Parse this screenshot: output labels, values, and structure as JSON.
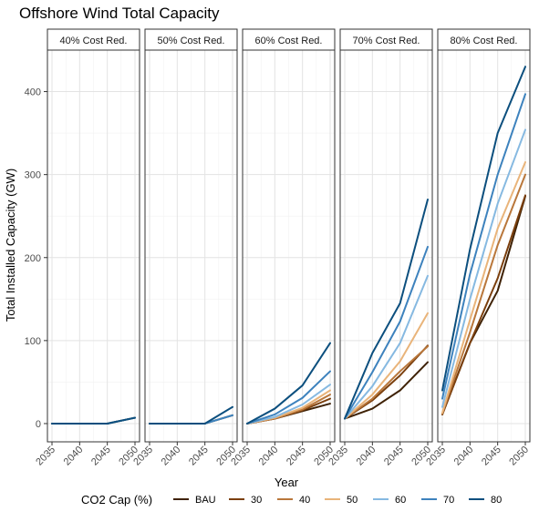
{
  "chart_data": {
    "type": "line",
    "title": "Offshore Wind Total Capacity",
    "xlabel": "Year",
    "ylabel": "Total Installed Capacity (GW)",
    "x": [
      2035,
      2040,
      2045,
      2050
    ],
    "x_ticks": [
      "2035",
      "2040",
      "2045",
      "2050"
    ],
    "ylim": [
      -22,
      450
    ],
    "y_ticks": [
      0,
      100,
      200,
      300,
      400
    ],
    "grid": true,
    "legend": {
      "title": "CO2 Cap (%)",
      "position": "bottom",
      "entries": [
        {
          "name": "BAU",
          "color": "#3f2206"
        },
        {
          "name": "30",
          "color": "#7b3f0d"
        },
        {
          "name": "40",
          "color": "#b9773b"
        },
        {
          "name": "50",
          "color": "#e9b47a"
        },
        {
          "name": "60",
          "color": "#86b9e1"
        },
        {
          "name": "70",
          "color": "#3d82bd"
        },
        {
          "name": "80",
          "color": "#0c4f7e"
        }
      ]
    },
    "panels": [
      {
        "label": "40% Cost Red.",
        "series": [
          {
            "name": "BAU",
            "values": [
              0,
              0,
              0,
              7
            ]
          },
          {
            "name": "30",
            "values": [
              0,
              0,
              0,
              7
            ]
          },
          {
            "name": "40",
            "values": [
              0,
              0,
              0,
              7
            ]
          },
          {
            "name": "50",
            "values": [
              0,
              0,
              0,
              7
            ]
          },
          {
            "name": "60",
            "values": [
              0,
              0,
              0,
              7
            ]
          },
          {
            "name": "70",
            "values": [
              0,
              0,
              0,
              7
            ]
          },
          {
            "name": "80",
            "values": [
              0,
              0,
              0,
              7
            ]
          }
        ]
      },
      {
        "label": "50% Cost Red.",
        "series": [
          {
            "name": "BAU",
            "values": [
              0,
              0,
              0,
              10
            ]
          },
          {
            "name": "30",
            "values": [
              0,
              0,
              0,
              10
            ]
          },
          {
            "name": "40",
            "values": [
              0,
              0,
              0,
              10
            ]
          },
          {
            "name": "50",
            "values": [
              0,
              0,
              0,
              10
            ]
          },
          {
            "name": "60",
            "values": [
              0,
              0,
              0,
              10
            ]
          },
          {
            "name": "70",
            "values": [
              0,
              0,
              0,
              10
            ]
          },
          {
            "name": "80",
            "values": [
              0,
              0,
              0,
              20
            ]
          }
        ]
      },
      {
        "label": "60% Cost Red.",
        "series": [
          {
            "name": "BAU",
            "values": [
              0,
              6,
              15,
              24
            ]
          },
          {
            "name": "30",
            "values": [
              0,
              6,
              16,
              30
            ]
          },
          {
            "name": "40",
            "values": [
              0,
              6,
              17,
              35
            ]
          },
          {
            "name": "50",
            "values": [
              0,
              7,
              19,
              40
            ]
          },
          {
            "name": "60",
            "values": [
              0,
              8,
              23,
              47
            ]
          },
          {
            "name": "70",
            "values": [
              0,
              11,
              31,
              63
            ]
          },
          {
            "name": "80",
            "values": [
              0,
              18,
              46,
              97
            ]
          }
        ]
      },
      {
        "label": "70% Cost Red.",
        "series": [
          {
            "name": "BAU",
            "values": [
              6,
              18,
              40,
              74
            ]
          },
          {
            "name": "30",
            "values": [
              6,
              28,
              58,
              94
            ]
          },
          {
            "name": "40",
            "values": [
              6,
              30,
              63,
              93
            ]
          },
          {
            "name": "50",
            "values": [
              6,
              35,
              75,
              133
            ]
          },
          {
            "name": "60",
            "values": [
              6,
              45,
              97,
              178
            ]
          },
          {
            "name": "70",
            "values": [
              6,
              62,
              123,
              213
            ]
          },
          {
            "name": "80",
            "values": [
              6,
              85,
              145,
              270
            ]
          }
        ]
      },
      {
        "label": "80% Cost Red.",
        "series": [
          {
            "name": "BAU",
            "values": [
              11,
              97,
              160,
              274
            ]
          },
          {
            "name": "30",
            "values": [
              11,
              97,
              175,
              275
            ]
          },
          {
            "name": "40",
            "values": [
              12,
              110,
              215,
              300
            ]
          },
          {
            "name": "50",
            "values": [
              13,
              125,
              235,
              315
            ]
          },
          {
            "name": "60",
            "values": [
              20,
              150,
              265,
              354
            ]
          },
          {
            "name": "70",
            "values": [
              30,
              180,
              300,
              397
            ]
          },
          {
            "name": "80",
            "values": [
              40,
              210,
              350,
              430
            ]
          }
        ]
      }
    ]
  }
}
